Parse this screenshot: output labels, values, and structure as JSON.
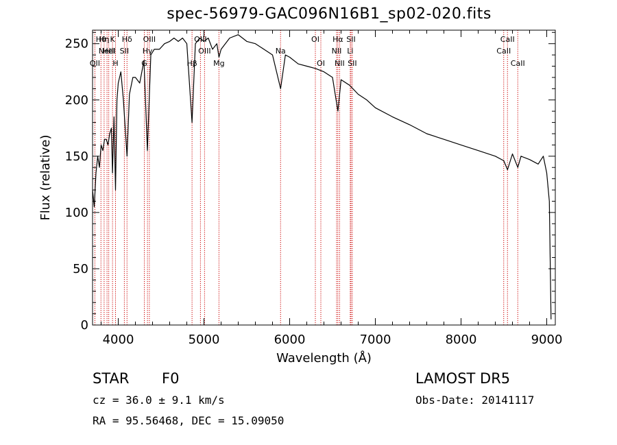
{
  "header": {
    "title": "spec-56979-GAC096N16B1_sp02-020.fits"
  },
  "info": {
    "object_type": "STAR",
    "object_class": "F0",
    "survey": "LAMOST DR5",
    "redshift": "cz = 36.0 ± 9.1 km/s",
    "obs_date": "Obs-Date: 20141117",
    "coords": "RA =  95.56468, DEC =  15.09050"
  },
  "chart_data": {
    "type": "line",
    "title": "spec-56979-GAC096N16B1_sp02-020.fits",
    "xlabel": "Wavelength (Å)",
    "ylabel": "Flux (relative)",
    "xlim": [
      3700,
      9100
    ],
    "ylim": [
      0,
      262
    ],
    "xticks": [
      4000,
      5000,
      6000,
      7000,
      8000,
      9000
    ],
    "yticks": [
      0,
      50,
      100,
      150,
      200,
      250
    ],
    "grid": false,
    "line_color": "#000000",
    "marker_color": "#cc0000",
    "line_markers": [
      {
        "wave": 3727,
        "labels": [
          "OII"
        ],
        "row": 2
      },
      {
        "wave": 3798,
        "labels": [
          "Hθ"
        ],
        "row": 0
      },
      {
        "wave": 3835,
        "labels": [
          "Hη"
        ],
        "row": 0
      },
      {
        "wave": 3869,
        "labels": [
          "NeIII"
        ],
        "row": 1
      },
      {
        "wave": 3889,
        "labels": [
          "HeI"
        ],
        "row": 1
      },
      {
        "wave": 3933,
        "labels": [
          "K"
        ],
        "row": 0
      },
      {
        "wave": 3968,
        "labels": [
          "H"
        ],
        "row": 2
      },
      {
        "wave": 4071,
        "labels": [
          "SII"
        ],
        "row": 1
      },
      {
        "wave": 4102,
        "labels": [
          "Hδ"
        ],
        "row": 0
      },
      {
        "wave": 4304,
        "labels": [
          "G"
        ],
        "row": 2
      },
      {
        "wave": 4341,
        "labels": [
          "Hγ"
        ],
        "row": 1
      },
      {
        "wave": 4363,
        "labels": [
          "OIII"
        ],
        "row": 0
      },
      {
        "wave": 4861,
        "labels": [
          "Hβ"
        ],
        "row": 2
      },
      {
        "wave": 4959,
        "labels": [
          "OIII"
        ],
        "row": 0
      },
      {
        "wave": 5007,
        "labels": [
          "OIII"
        ],
        "row": 1
      },
      {
        "wave": 5175,
        "labels": [
          "Mg"
        ],
        "row": 2
      },
      {
        "wave": 5894,
        "labels": [
          "Na"
        ],
        "row": 1
      },
      {
        "wave": 6300,
        "labels": [
          "OI"
        ],
        "row": 0
      },
      {
        "wave": 6364,
        "labels": [
          "OI"
        ],
        "row": 2
      },
      {
        "wave": 6548,
        "labels": [
          "NII"
        ],
        "row": 1
      },
      {
        "wave": 6563,
        "labels": [
          "Hα"
        ],
        "row": 0
      },
      {
        "wave": 6583,
        "labels": [
          "NII"
        ],
        "row": 2
      },
      {
        "wave": 6707,
        "labels": [
          "Li"
        ],
        "row": 1
      },
      {
        "wave": 6716,
        "labels": [
          "SII"
        ],
        "row": 0
      },
      {
        "wave": 6731,
        "labels": [
          "SII"
        ],
        "row": 2
      },
      {
        "wave": 8498,
        "labels": [
          "CaII"
        ],
        "row": 1
      },
      {
        "wave": 8542,
        "labels": [
          "CaII"
        ],
        "row": 0
      },
      {
        "wave": 8662,
        "labels": [
          "CaII"
        ],
        "row": 2
      }
    ],
    "series": [
      {
        "x": [
          3700,
          3720,
          3740,
          3760,
          3780,
          3800,
          3820,
          3840,
          3860,
          3880,
          3900,
          3920,
          3933,
          3950,
          3968,
          3985,
          4000,
          4030,
          4060,
          4102,
          4130,
          4170,
          4200,
          4250,
          4300,
          4340,
          4380,
          4420,
          4480,
          4540,
          4600,
          4650,
          4700,
          4750,
          4800,
          4861,
          4900,
          4950,
          5000,
          5050,
          5100,
          5150,
          5175,
          5200,
          5300,
          5400,
          5500,
          5600,
          5700,
          5800,
          5894,
          5950,
          6000,
          6100,
          6200,
          6300,
          6400,
          6500,
          6563,
          6600,
          6700,
          6800,
          6900,
          7000,
          7200,
          7400,
          7600,
          7800,
          8000,
          8200,
          8400,
          8498,
          8542,
          8600,
          8662,
          8700,
          8800,
          8900,
          8960,
          9000,
          9030,
          9050
        ],
        "y": [
          120,
          105,
          135,
          150,
          140,
          160,
          155,
          165,
          165,
          160,
          170,
          175,
          135,
          185,
          120,
          200,
          215,
          225,
          200,
          150,
          205,
          220,
          220,
          215,
          235,
          155,
          240,
          245,
          245,
          250,
          252,
          255,
          252,
          255,
          250,
          180,
          250,
          255,
          252,
          255,
          245,
          250,
          238,
          245,
          255,
          258,
          252,
          250,
          245,
          240,
          210,
          240,
          238,
          232,
          230,
          228,
          225,
          220,
          190,
          218,
          213,
          205,
          200,
          193,
          185,
          178,
          170,
          165,
          160,
          155,
          150,
          146,
          138,
          152,
          140,
          150,
          147,
          143,
          150,
          135,
          110,
          5
        ]
      }
    ]
  }
}
